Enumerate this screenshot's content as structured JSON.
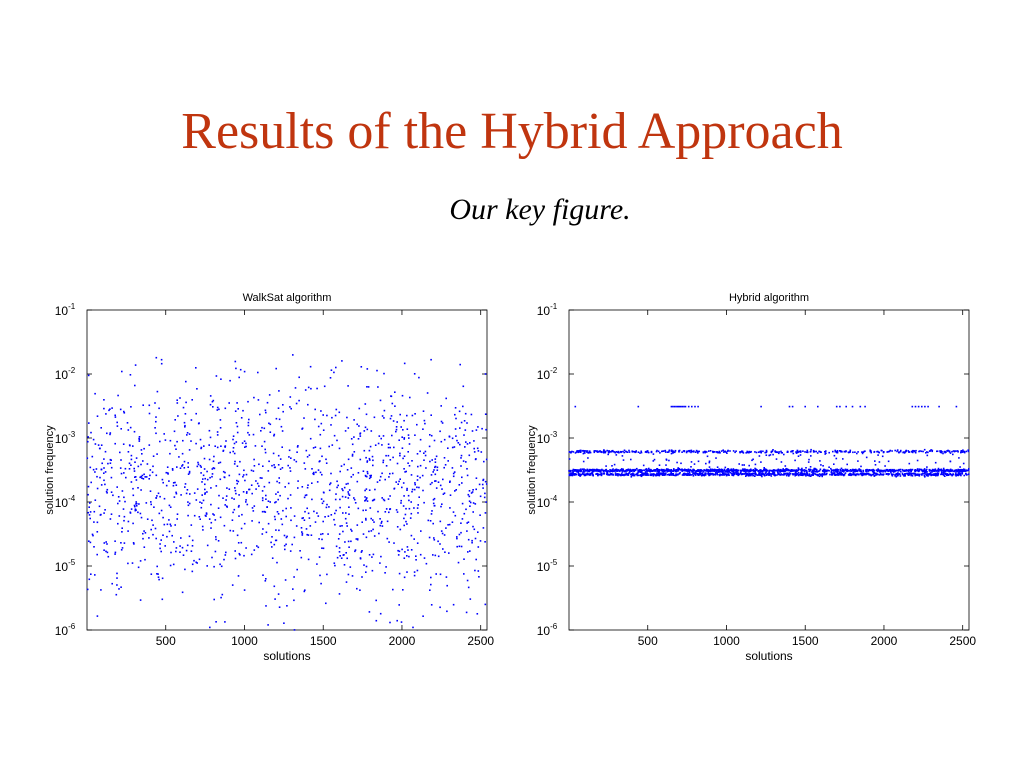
{
  "slide": {
    "title": "Results of the Hybrid Approach",
    "subtitle": "Our key figure.",
    "title_color": "#c0350f"
  },
  "chart_data": [
    {
      "type": "scatter",
      "title": "WalkSat algorithm",
      "xlabel": "solutions",
      "ylabel": "solution frequency",
      "xlim": [
        0,
        2540
      ],
      "ylim": [
        1e-06,
        0.1
      ],
      "yscale": "log",
      "xticks": [
        500,
        1000,
        1500,
        2000,
        2500
      ],
      "yticks": [
        {
          "base": "10",
          "exp": "-6",
          "value": 1e-06
        },
        {
          "base": "10",
          "exp": "-5",
          "value": 1e-05
        },
        {
          "base": "10",
          "exp": "-4",
          "value": 0.0001
        },
        {
          "base": "10",
          "exp": "-3",
          "value": 0.001
        },
        {
          "base": "10",
          "exp": "-2",
          "value": 0.01
        },
        {
          "base": "10",
          "exp": "-1",
          "value": 0.1
        }
      ],
      "marker_color": "#0000ff",
      "grid": false,
      "points": {
        "count": 2540,
        "distribution": "log-uniform scatter",
        "y_center": 0.00015,
        "y_range": [
          1e-06,
          0.02
        ],
        "notable": [
          {
            "x": 440,
            "y": 0.018
          },
          {
            "x": 1420,
            "y": 0.013
          },
          {
            "x": 1780,
            "y": 0.012
          },
          {
            "x": 2370,
            "y": 0.014
          },
          {
            "x": 1150,
            "y": 1.2e-06
          },
          {
            "x": 2070,
            "y": 1.1e-06
          },
          {
            "x": 780,
            "y": 1.1e-06
          }
        ]
      }
    },
    {
      "type": "scatter",
      "title": "Hybrid algorithm",
      "xlabel": "solutions",
      "ylabel": "solution frequency",
      "xlim": [
        0,
        2540
      ],
      "ylim": [
        1e-06,
        0.1
      ],
      "yscale": "log",
      "xticks": [
        500,
        1000,
        1500,
        2000,
        2500
      ],
      "yticks": [
        {
          "base": "10",
          "exp": "-6",
          "value": 1e-06
        },
        {
          "base": "10",
          "exp": "-5",
          "value": 1e-05
        },
        {
          "base": "10",
          "exp": "-4",
          "value": 0.0001
        },
        {
          "base": "10",
          "exp": "-3",
          "value": 0.001
        },
        {
          "base": "10",
          "exp": "-2",
          "value": 0.01
        },
        {
          "base": "10",
          "exp": "-1",
          "value": 0.1
        }
      ],
      "marker_color": "#0000ff",
      "grid": false,
      "bands": [
        {
          "y": 0.00061,
          "count": 420
        },
        {
          "y": 0.00031,
          "count": 1100
        },
        {
          "y": 0.00027,
          "count": 900
        }
      ],
      "sparse_row": {
        "y": 0.0031,
        "x": [
          40,
          440,
          650,
          660,
          670,
          680,
          690,
          700,
          710,
          720,
          730,
          740,
          760,
          780,
          800,
          820,
          1220,
          1400,
          1420,
          1500,
          1580,
          1700,
          1720,
          1760,
          1800,
          1850,
          1880,
          2180,
          2200,
          2220,
          2240,
          2260,
          2280,
          2350,
          2460
        ]
      },
      "between_bands_scatter": {
        "y_range": [
          0.00034,
          0.00056
        ],
        "count": 90
      }
    }
  ]
}
